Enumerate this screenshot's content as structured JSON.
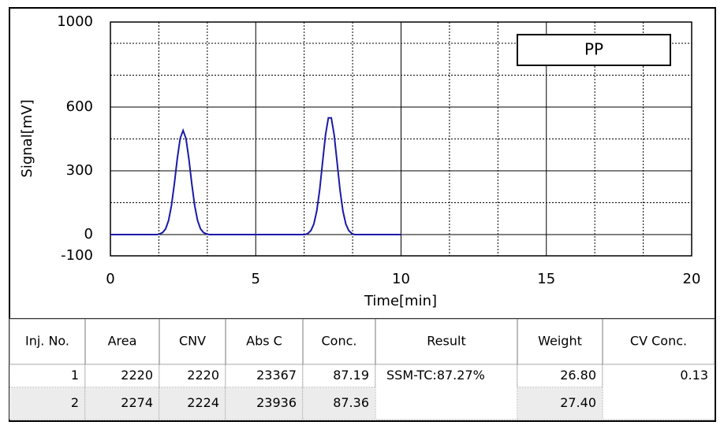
{
  "chart_data": {
    "type": "line",
    "ylabel": "Signal[mV]",
    "xlabel": "Time[min]",
    "xlim": [
      0,
      20
    ],
    "ylim": [
      -100,
      1000
    ],
    "xticks": [
      0,
      5,
      10,
      15,
      20
    ],
    "yticks": [
      -100,
      0,
      300,
      600,
      1000
    ],
    "ygrid": [
      0,
      150,
      300,
      450,
      600,
      750,
      900
    ],
    "x": [
      0,
      1.6,
      1.7,
      1.8,
      1.9,
      2.0,
      2.1,
      2.2,
      2.3,
      2.4,
      2.5,
      2.6,
      2.7,
      2.8,
      2.9,
      3.0,
      3.1,
      3.2,
      3.3,
      3.4,
      6.7,
      6.8,
      6.9,
      7.0,
      7.1,
      7.2,
      7.3,
      7.4,
      7.5,
      7.6,
      7.7,
      7.8,
      7.9,
      8.0,
      8.1,
      8.2,
      8.3,
      8.4,
      10
    ],
    "series": [
      {
        "name": "PP",
        "color": "#1a1aa6",
        "values": [
          0,
          0,
          3,
          10,
          27,
          66,
          136,
          239,
          356,
          452,
          490,
          452,
          356,
          239,
          136,
          66,
          27,
          10,
          3,
          0,
          0,
          6,
          19,
          50,
          111,
          210,
          340,
          468,
          549,
          549,
          468,
          340,
          210,
          111,
          50,
          19,
          6,
          0,
          0
        ]
      }
    ]
  },
  "table": {
    "header": [
      "Inj. No.",
      "Area",
      "CNV",
      "Abs C",
      "Conc.",
      "Result",
      "Weight",
      "CV Conc."
    ],
    "rows": [
      [
        "1",
        "2220",
        "2220",
        "23367",
        "87.19",
        "SSM-TC:87.27%",
        "26.80",
        "0.13"
      ],
      [
        "2",
        "2274",
        "2224",
        "23936",
        "87.36",
        null,
        "27.40",
        null
      ]
    ]
  }
}
